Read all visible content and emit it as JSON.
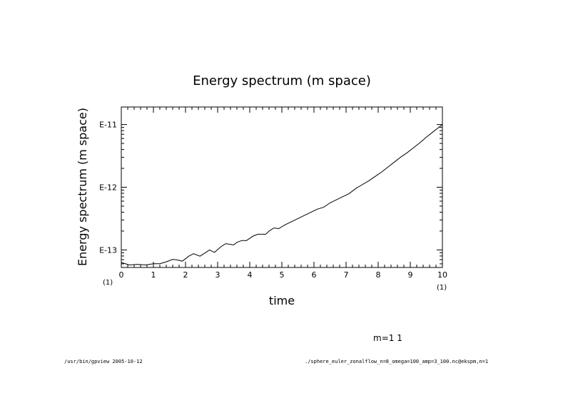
{
  "chart_data": {
    "type": "line",
    "title": "Energy spectrum (m space)",
    "xlabel": "time",
    "ylabel": "Energy spectrum (m space)",
    "x_scale_note_left": "(1)",
    "x_scale_note_right": "(1)",
    "xlim": [
      0,
      10
    ],
    "ylim_log10": [
      -13.28,
      -10.72
    ],
    "y_scale": "log",
    "x_ticks": [
      "0",
      "1",
      "2",
      "3",
      "4",
      "5",
      "6",
      "7",
      "8",
      "9",
      "10"
    ],
    "y_ticks": [
      {
        "label": "E-11",
        "log10": -11
      },
      {
        "label": "E-12",
        "log10": -12
      },
      {
        "label": "E-13",
        "log10": -13
      }
    ],
    "series": [
      {
        "line_color": "#000000",
        "x": [
          0,
          0.25,
          0.5,
          0.75,
          1.0,
          1.2,
          1.4,
          1.6,
          1.75,
          1.9,
          2.1,
          2.25,
          2.45,
          2.6,
          2.75,
          2.9,
          3.1,
          3.25,
          3.5,
          3.6,
          3.75,
          3.9,
          4.1,
          4.25,
          4.5,
          4.6,
          4.75,
          4.9,
          5.1,
          5.3,
          5.5,
          5.7,
          5.9,
          6.1,
          6.3,
          6.5,
          6.7,
          6.9,
          7.1,
          7.3,
          7.5,
          7.7,
          7.9,
          8.1,
          8.3,
          8.5,
          8.7,
          8.9,
          9.1,
          9.3,
          9.5,
          9.7,
          10.0
        ],
        "y_log10": [
          -13.2,
          -13.24,
          -13.23,
          -13.24,
          -13.22,
          -13.22,
          -13.19,
          -13.15,
          -13.16,
          -13.18,
          -13.1,
          -13.06,
          -13.1,
          -13.05,
          -13.0,
          -13.04,
          -12.95,
          -12.9,
          -12.92,
          -12.88,
          -12.85,
          -12.85,
          -12.78,
          -12.75,
          -12.75,
          -12.7,
          -12.65,
          -12.66,
          -12.6,
          -12.55,
          -12.5,
          -12.45,
          -12.4,
          -12.35,
          -12.32,
          -12.25,
          -12.2,
          -12.15,
          -12.1,
          -12.02,
          -11.96,
          -11.9,
          -11.83,
          -11.76,
          -11.68,
          -11.6,
          -11.52,
          -11.45,
          -11.37,
          -11.29,
          -11.2,
          -11.12,
          -11.0
        ]
      }
    ]
  },
  "footer": {
    "left": "/usr/bin/gpview  2005-10-12",
    "right": "./sphere_euler_zonalflow_n=8_omega=100_amp=3_100.nc@ekspm,n=1",
    "legend_note": "m=1  1"
  }
}
